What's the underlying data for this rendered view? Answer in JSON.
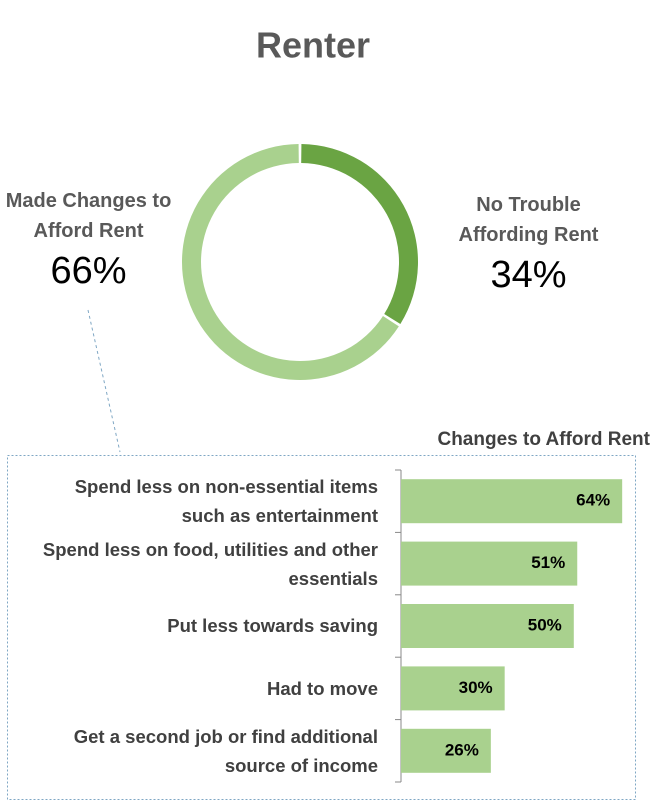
{
  "chart_data": [
    {
      "type": "donut",
      "title": "Renter",
      "categories": [
        "Made Changes to Afford Rent",
        "No Trouble Affording Rent"
      ],
      "values": [
        66,
        34
      ],
      "value_labels": [
        "66%",
        "34%"
      ],
      "colors": [
        "#a9d18e",
        "#6aa443"
      ]
    },
    {
      "type": "hbar",
      "title": "Changes to Afford Rent",
      "categories": [
        "Spend less on non-essential items such as entertainment",
        "Spend less on food, utilities and other essentials",
        "Put less towards saving",
        "Had to move",
        "Get a second job  or find additional source of income"
      ],
      "values": [
        64,
        51,
        50,
        30,
        26
      ],
      "value_labels": [
        "64%",
        "51%",
        "50%",
        "30%",
        "26%"
      ],
      "color": "#a9d18e",
      "xlim": [
        0,
        68
      ]
    }
  ]
}
